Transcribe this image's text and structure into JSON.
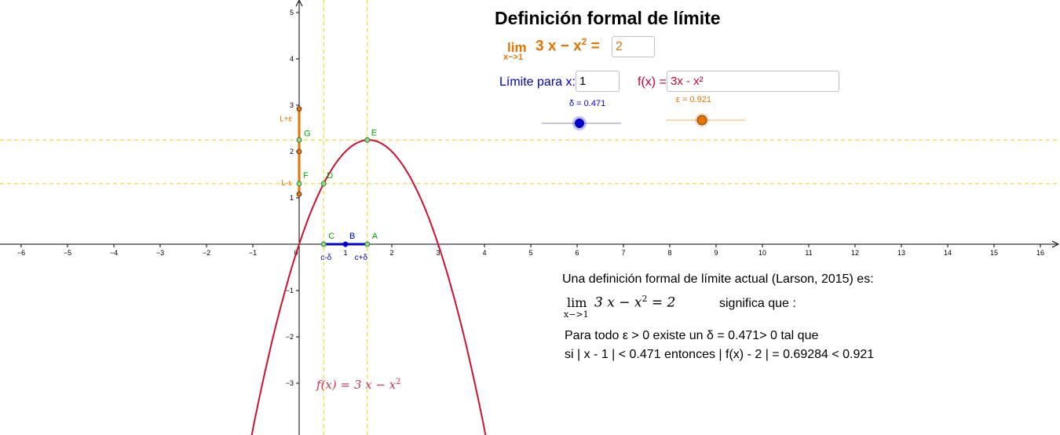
{
  "title": "Definición formal de límite",
  "limit_display": {
    "lim_word": "lim",
    "lim_sub": "x−>1",
    "expression": "3 x − x",
    "exponent": "2",
    "equals": "=",
    "value": "2"
  },
  "inputs": {
    "x_label": "Límite para x:",
    "x_value": "1",
    "f_label": "f(x) =",
    "f_value": "3x - x²"
  },
  "sliders": {
    "delta_label": "δ = 0.471",
    "delta_value": 0.471,
    "epsilon_label": "ε = 0.921",
    "epsilon_value": 0.921
  },
  "axis": {
    "x_ticks": [
      -6,
      -5,
      -4,
      -3,
      -2,
      -1,
      0,
      1,
      2,
      3,
      4,
      5,
      6,
      7,
      8,
      9,
      10,
      11,
      12,
      13,
      14,
      15,
      16
    ],
    "y_ticks": [
      -3,
      -2,
      -1,
      1,
      2,
      3,
      4,
      5
    ]
  },
  "points": [
    {
      "name": "A",
      "x": 1.471,
      "y": 0
    },
    {
      "name": "B",
      "x": 1,
      "y": 0
    },
    {
      "name": "C",
      "x": 0.529,
      "y": 0
    },
    {
      "name": "D",
      "x": 0.529,
      "y": 1.307
    },
    {
      "name": "E",
      "x": 1.471,
      "y": 2.249
    },
    {
      "name": "F",
      "x": 0,
      "y": 1.307
    },
    {
      "name": "G",
      "x": 0,
      "y": 2.249
    }
  ],
  "labels": {
    "c_minus_delta": "c-δ",
    "c_plus_delta": "c+δ",
    "l_plus_eps": "L+ε",
    "l_minus_eps": "L-ε"
  },
  "function_label": {
    "lhs": "f(x)  =  3 x − x",
    "exponent": "2"
  },
  "explanation": {
    "line1": "Una definición formal de límite actual (Larson, 2015) es:",
    "formula_lim": "lim",
    "formula_sub": "x−>1",
    "formula_expr": "3 x − x",
    "formula_exp": "2",
    "formula_rest": " = 2",
    "significa": "significa que :",
    "line3": "Para todo ε > 0 existe un δ = 0.471> 0 tal que",
    "line4": "si  | x - 1 | < 0.471  entonces  | f(x) - 2 | = 0.69284 < 0.921"
  },
  "colors": {
    "curve": "#cc1133",
    "orange": "#e67300",
    "blue": "#0000cc",
    "green": "#00aa00",
    "dashed": "#ffcc00"
  }
}
